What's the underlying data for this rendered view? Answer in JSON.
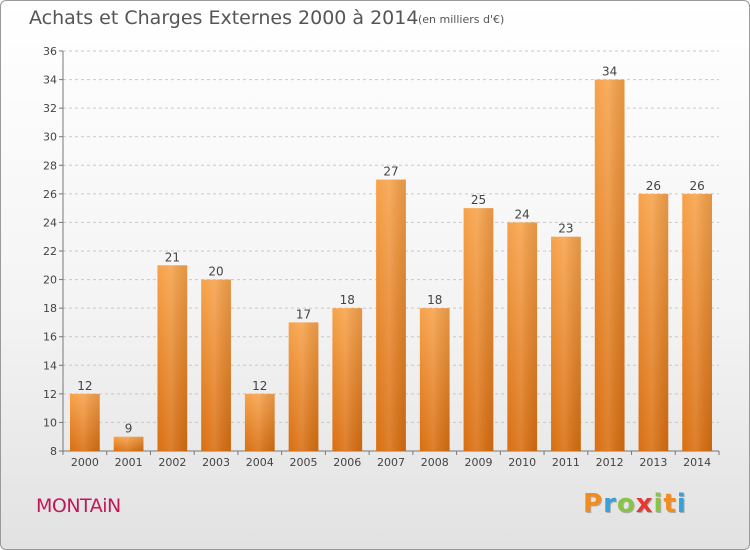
{
  "header": {
    "title": "Achats et Charges Externes 2000 à 2014",
    "unit": "(en milliers d'€)"
  },
  "footer": {
    "town": "MONTAiN",
    "logo_letters": [
      "P",
      "r",
      "o",
      "x",
      "i",
      "t",
      "i"
    ],
    "logo_colors": [
      "#f28c1e",
      "#3aa0d8",
      "#8bc34a",
      "#e53935",
      "#8bc34a",
      "#f28c1e",
      "#3aa0d8"
    ]
  },
  "colors": {
    "bar_top": "#f7a24a",
    "bar_bottom": "#d96e10",
    "grid": "#c8c8c8"
  },
  "chart_data": {
    "type": "bar",
    "title": "Achats et Charges Externes 2000 à 2014",
    "categories": [
      "2000",
      "2001",
      "2002",
      "2003",
      "2004",
      "2005",
      "2006",
      "2007",
      "2008",
      "2009",
      "2010",
      "2011",
      "2012",
      "2013",
      "2014"
    ],
    "values": [
      12,
      9,
      21,
      20,
      12,
      17,
      18,
      27,
      18,
      25,
      24,
      23,
      34,
      26,
      26
    ],
    "ylim": [
      8,
      36
    ],
    "yticks": [
      8,
      10,
      12,
      14,
      16,
      18,
      20,
      22,
      24,
      26,
      28,
      30,
      32,
      34,
      36
    ],
    "xlabel": "",
    "ylabel": "",
    "grid": true
  }
}
